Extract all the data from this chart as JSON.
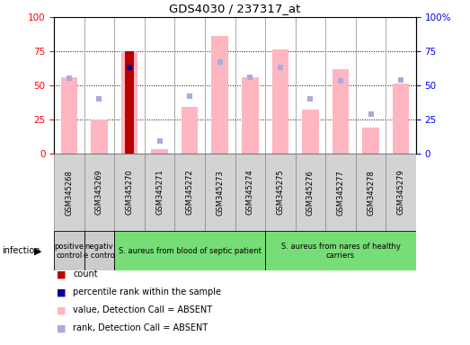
{
  "title": "GDS4030 / 237317_at",
  "samples": [
    "GSM345268",
    "GSM345269",
    "GSM345270",
    "GSM345271",
    "GSM345272",
    "GSM345273",
    "GSM345274",
    "GSM345275",
    "GSM345276",
    "GSM345277",
    "GSM345278",
    "GSM345279"
  ],
  "pink_bar_values": [
    56,
    25,
    75,
    3,
    34,
    86,
    56,
    76,
    32,
    62,
    19,
    51
  ],
  "blue_sq_values": [
    55,
    40,
    63,
    9,
    42,
    67,
    56,
    63,
    40,
    53,
    29,
    54
  ],
  "count_bar_index": 2,
  "count_bar_value": 75,
  "percentile_index": 2,
  "percentile_value": 63,
  "pink_color": "#FFB6C1",
  "blue_sq_color": "#AAAADD",
  "count_color": "#BB0000",
  "percentile_color": "#000099",
  "ylim": [
    0,
    100
  ],
  "yticks": [
    0,
    25,
    50,
    75,
    100
  ],
  "left_axis_color": "red",
  "right_axis_color": "blue",
  "group_starts": [
    0,
    1,
    2,
    7
  ],
  "group_ends": [
    1,
    2,
    7,
    12
  ],
  "group_labels": [
    "positive\ncontrol",
    "negativ\ne contro",
    "S. aureus from blood of septic patient",
    "S. aureus from nares of healthy\ncarriers"
  ],
  "group_colors": [
    "#CCCCCC",
    "#CCCCCC",
    "#77DD77",
    "#77DD77"
  ],
  "infection_label": "infection",
  "legend_labels": [
    "count",
    "percentile rank within the sample",
    "value, Detection Call = ABSENT",
    "rank, Detection Call = ABSENT"
  ],
  "legend_colors": [
    "#BB0000",
    "#000099",
    "#FFB6C1",
    "#AAAADD"
  ]
}
